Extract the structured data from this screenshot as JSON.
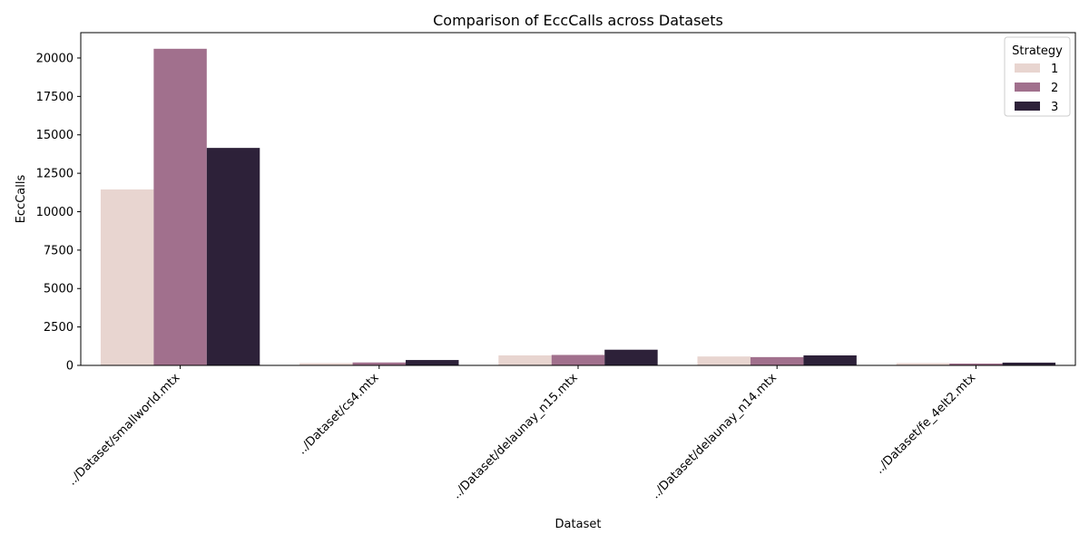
{
  "chart_data": {
    "type": "bar",
    "title": "Comparison of EccCalls across Datasets",
    "xlabel": "Dataset",
    "ylabel": "EccCalls",
    "categories": [
      "../Dataset/smallworld.mtx",
      "../Dataset/cs4.mtx",
      "../Dataset/delaunay_n15.mtx",
      "../Dataset/delaunay_n14.mtx",
      "../Dataset/fe_4elt2.mtx"
    ],
    "series": [
      {
        "name": "1",
        "color": "#e8d5d0",
        "values": [
          11450,
          150,
          650,
          580,
          150
        ]
      },
      {
        "name": "2",
        "color": "#a1708d",
        "values": [
          20600,
          190,
          680,
          540,
          120
        ]
      },
      {
        "name": "3",
        "color": "#2d2139",
        "values": [
          14150,
          350,
          1020,
          650,
          180
        ]
      }
    ],
    "ylim": [
      0,
      21650
    ],
    "yticks": [
      0,
      2500,
      5000,
      7500,
      10000,
      12500,
      15000,
      17500,
      20000
    ],
    "grid": false,
    "legend": {
      "title": "Strategy",
      "position": "top-right"
    }
  }
}
